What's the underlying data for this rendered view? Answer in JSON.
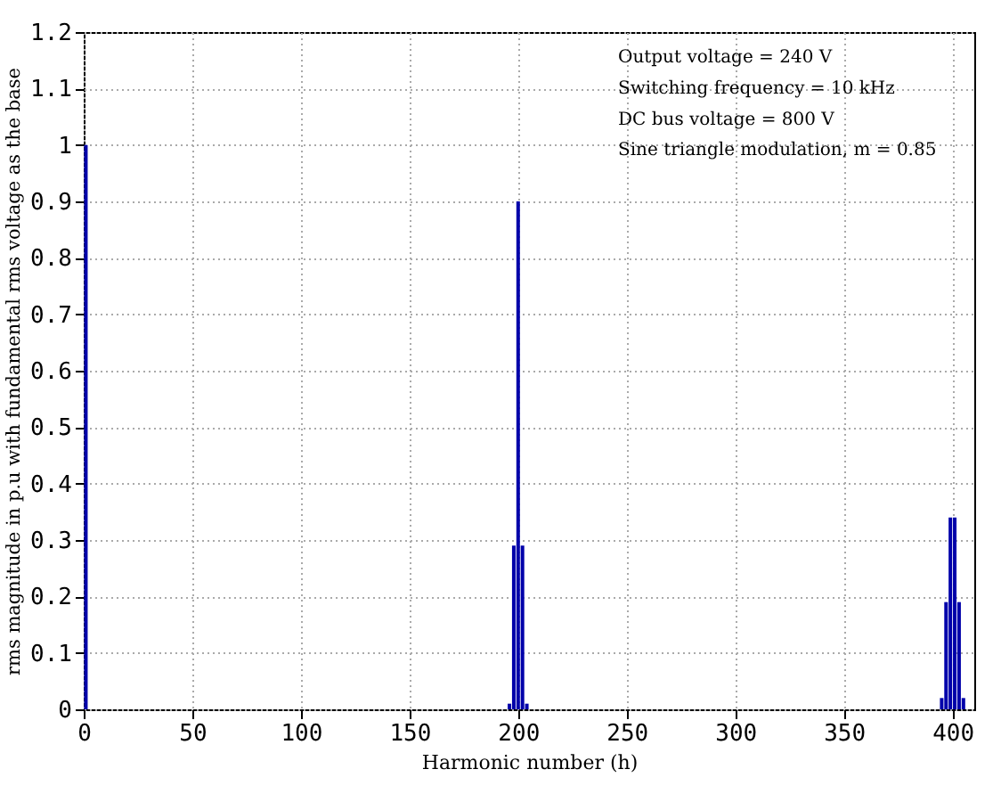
{
  "chart_data": {
    "type": "bar",
    "xlabel": "Harmonic number (h)",
    "ylabel": "rms magnitude in p.u with fundamental rms voltage as the base",
    "x": [
      1,
      196,
      198,
      200,
      202,
      204,
      395,
      397,
      399,
      401,
      403,
      405
    ],
    "values": [
      1.0,
      0.01,
      0.29,
      0.9,
      0.29,
      0.01,
      0.02,
      0.19,
      0.34,
      0.34,
      0.19,
      0.02
    ],
    "color": "#0000aa",
    "xlim": [
      0,
      410
    ],
    "xticks": [
      0,
      50,
      100,
      150,
      200,
      250,
      300,
      350,
      400
    ],
    "ylim": [
      0,
      1.2
    ],
    "yticks": [
      0,
      0.1,
      0.2,
      0.3,
      0.4,
      0.5,
      0.6,
      0.7,
      0.8,
      0.9,
      1,
      1.1,
      1.2
    ],
    "grid": true,
    "annotations": [
      "Output voltage = 240  V",
      "Switching frequency = 10 kHz",
      "DC bus voltage = 800 V",
      "Sine triangle modulation, m = 0.85"
    ]
  }
}
